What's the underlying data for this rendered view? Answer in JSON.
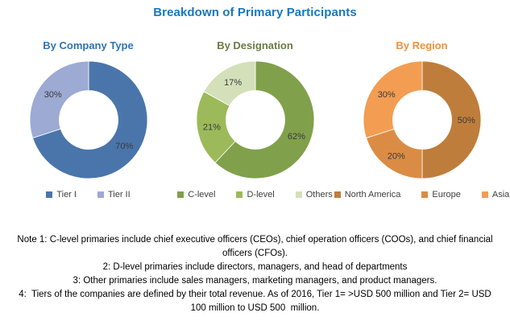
{
  "title": "Breakdown of Primary Participants",
  "title_color": "#1878BE",
  "chart_data": [
    {
      "type": "pie",
      "title": "By Company Type",
      "title_color": "#2E74B5",
      "labels": [
        "Tier I",
        "Tier II"
      ],
      "values": [
        70,
        30
      ],
      "colors": [
        "#4A75AB",
        "#9CAAD4"
      ],
      "value_label_color": "#3A3A3A",
      "hole": 0.5,
      "start_angle": "top",
      "direction": "clockwise",
      "legend_position": "bottom"
    },
    {
      "type": "pie",
      "title": "By Designation",
      "title_color": "#697B43",
      "labels": [
        "C-level",
        "D-level",
        "Others"
      ],
      "values": [
        62,
        21,
        17
      ],
      "colors": [
        "#81A04B",
        "#9CBA59",
        "#D4E0B9"
      ],
      "value_label_color": "#3A3A3A",
      "hole": 0.5,
      "start_angle": "top",
      "direction": "clockwise",
      "legend_position": "bottom"
    },
    {
      "type": "pie",
      "title": "By Region",
      "title_color": "#F0913A",
      "labels": [
        "North America",
        "Europe",
        "Asia"
      ],
      "values": [
        50,
        20,
        30
      ],
      "colors": [
        "#BF7D3B",
        "#DB8C44",
        "#F29D52"
      ],
      "value_label_color": "#3A3A3A",
      "hole": 0.5,
      "start_angle": "top",
      "direction": "clockwise",
      "legend_position": "bottom"
    }
  ],
  "notes": {
    "lines": [
      "Note 1: C-level primaries include chief executive officers (CEOs), chief operation officers (COOs), and chief financial",
      "officers (CFOs).",
      "2: D-level primaries include directors, managers, and head of departments",
      "3: Other primaries include sales managers, marketing managers, and product managers.",
      "4:  Tiers of the companies are defined by their total revenue. As of 2016, Tier 1= >USD 500 million and Tier 2= USD",
      "100 million to USD 500  million."
    ]
  }
}
